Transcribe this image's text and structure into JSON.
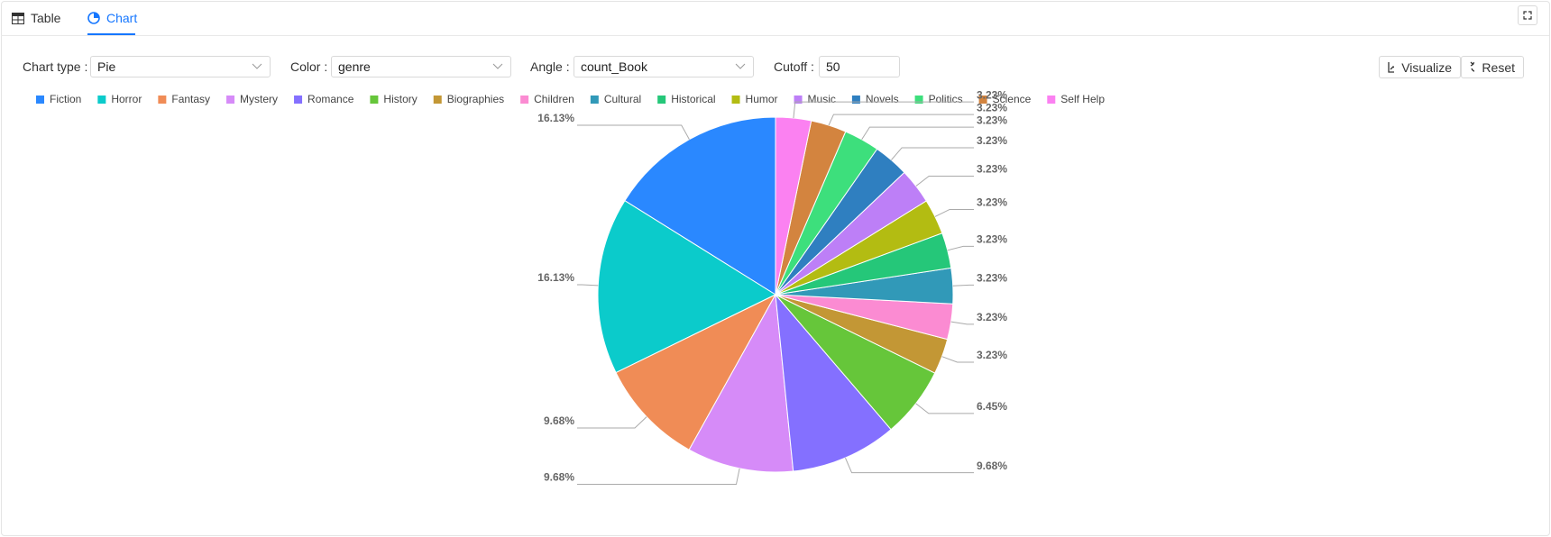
{
  "tabs": [
    "Table",
    "Chart"
  ],
  "controls": {
    "chart_type": {
      "label": "Chart type",
      "value": "Pie"
    },
    "color": {
      "label": "Color",
      "value": "genre"
    },
    "angle": {
      "label": "Angle",
      "value": "count_Book"
    },
    "cutoff": {
      "label": "Cutoff",
      "value": "50"
    },
    "visualize": "Visualize",
    "reset": "Reset"
  },
  "chart_data": {
    "type": "pie",
    "categories": [
      "Fiction",
      "Horror",
      "Fantasy",
      "Mystery",
      "Romance",
      "History",
      "Biographies",
      "Children",
      "Cultural",
      "Historical",
      "Humor",
      "Music",
      "Novels",
      "Politics",
      "Science",
      "Self Help"
    ],
    "values": [
      16.13,
      16.13,
      9.68,
      9.68,
      9.68,
      6.45,
      3.23,
      3.23,
      3.23,
      3.23,
      3.23,
      3.23,
      3.23,
      3.23,
      3.23,
      3.23
    ],
    "value_labels": [
      "16.13%",
      "16.13%",
      "9.68%",
      "9.68%",
      "9.68%",
      "6.45%",
      "3.23%",
      "3.23%",
      "3.23%",
      "3.23%",
      "3.23%",
      "3.23%",
      "3.23%",
      "3.23%",
      "3.23%",
      "3.23%"
    ],
    "colors": [
      "#2a88ff",
      "#0bcbcb",
      "#f08c56",
      "#d68bf8",
      "#8470ff",
      "#66c63a",
      "#c39735",
      "#fb8bd2",
      "#3199b8",
      "#25c779",
      "#b3bc12",
      "#bd7ff7",
      "#2f7fc0",
      "#3ddf7c",
      "#d3843f",
      "#fb81f1"
    ]
  }
}
